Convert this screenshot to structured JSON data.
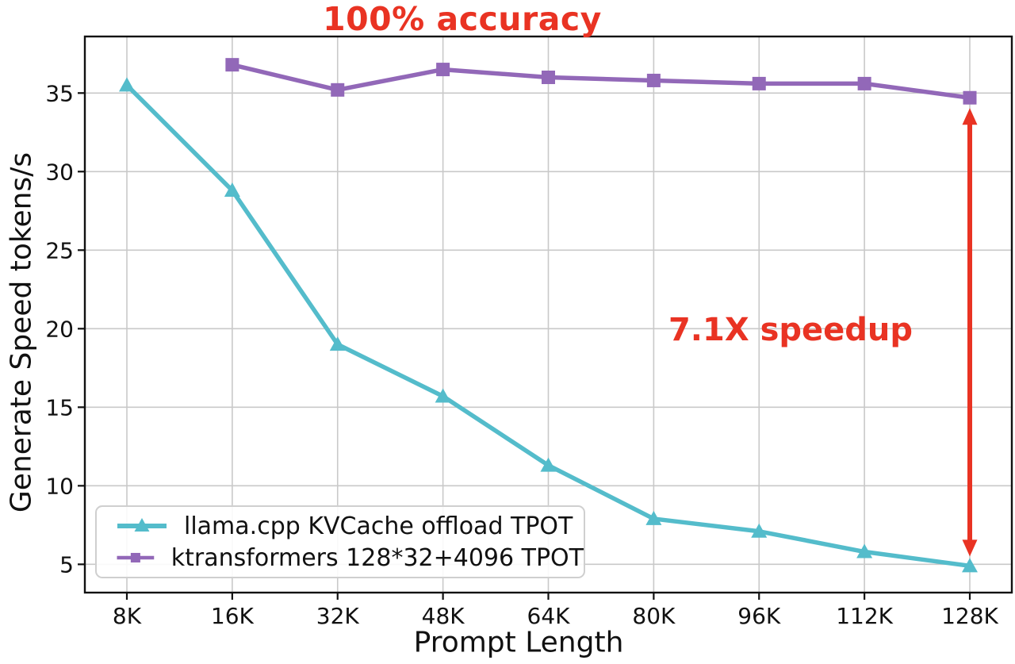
{
  "chart_data": {
    "type": "line",
    "title": "",
    "xlabel": "Prompt Length",
    "ylabel": "Generate Speed tokens/s",
    "categories": [
      "8K",
      "16K",
      "32K",
      "48K",
      "64K",
      "80K",
      "96K",
      "112K",
      "128K"
    ],
    "yticks": [
      5,
      10,
      15,
      20,
      25,
      30,
      35
    ],
    "ylim": [
      3.2,
      38.6
    ],
    "grid": true,
    "legend_position": "lower left",
    "grid_color": "#c9c9c9",
    "axis_color": "#111111",
    "series": [
      {
        "name": "llama.cpp KVCache offload TPOT",
        "color": "#54bccb",
        "marker": "triangle",
        "values": [
          35.5,
          28.8,
          19.0,
          15.7,
          11.3,
          7.9,
          7.1,
          5.8,
          4.9
        ]
      },
      {
        "name": "ktransformers 128*32+4096 TPOT",
        "color": "#9268b8",
        "marker": "square",
        "values": [
          null,
          36.8,
          35.2,
          36.5,
          36.0,
          35.8,
          35.6,
          35.6,
          34.7
        ]
      }
    ],
    "annotations": {
      "accuracy_label": {
        "text": "100% accuracy",
        "color": "#e93323"
      },
      "speedup_label": {
        "text": "7.1X speedup",
        "color": "#e93323"
      },
      "speedup_arrow": {
        "category": "128K",
        "from_value": 34.7,
        "to_value": 4.9,
        "color": "#e93323"
      }
    }
  }
}
